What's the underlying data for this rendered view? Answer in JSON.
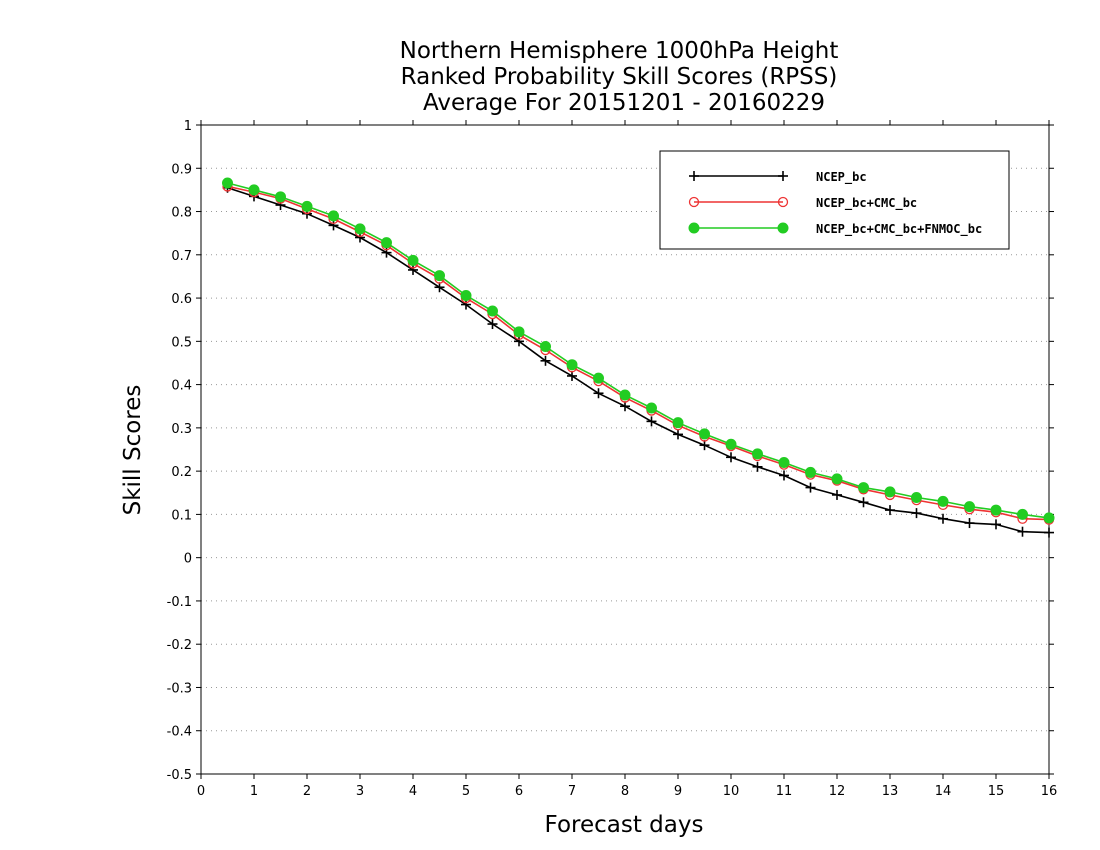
{
  "chart_data": {
    "type": "line",
    "title_lines": [
      "Northern Hemisphere 1000hPa Height",
      "Ranked Probability Skill Scores (RPSS)",
      "Average For 20151201 - 20160229"
    ],
    "xlabel": "Forecast days",
    "ylabel": "Skill Scores",
    "xlim": [
      0,
      16
    ],
    "ylim": [
      -0.5,
      1
    ],
    "x_ticks": [
      0,
      1,
      2,
      3,
      4,
      5,
      6,
      7,
      8,
      9,
      10,
      11,
      12,
      13,
      14,
      15,
      16
    ],
    "y_ticks": [
      -0.5,
      -0.4,
      -0.3,
      -0.2,
      -0.1,
      0,
      0.1,
      0.2,
      0.3,
      0.4,
      0.5,
      0.6,
      0.7,
      0.8,
      0.9,
      1
    ],
    "y_tick_labels": [
      "-0.5",
      "-0.4",
      "-0.3",
      "-0.2",
      "-0.1",
      "0",
      "0.1",
      "0.2",
      "0.3",
      "0.4",
      "0.5",
      "0.6",
      "0.7",
      "0.8",
      "0.9",
      "1"
    ],
    "grid": "horizontal dotted",
    "legend_position": "top-right",
    "x": [
      0.5,
      1,
      1.5,
      2,
      2.5,
      3,
      3.5,
      4,
      4.5,
      5,
      5.5,
      6,
      6.5,
      7,
      7.5,
      8,
      8.5,
      9,
      9.5,
      10,
      10.5,
      11,
      11.5,
      12,
      12.5,
      13,
      13.5,
      14,
      14.5,
      15,
      15.5,
      16
    ],
    "series": [
      {
        "name": "NCEP_bc",
        "color": "#000000",
        "marker": "plus",
        "values": [
          0.855,
          0.835,
          0.815,
          0.795,
          0.768,
          0.74,
          0.705,
          0.665,
          0.625,
          0.585,
          0.54,
          0.5,
          0.455,
          0.42,
          0.38,
          0.35,
          0.315,
          0.285,
          0.26,
          0.232,
          0.21,
          0.19,
          0.162,
          0.145,
          0.128,
          0.11,
          0.103,
          0.09,
          0.08,
          0.077,
          0.06,
          0.058
        ]
      },
      {
        "name": "NCEP_bc+CMC_bc",
        "color": "#ee3333",
        "marker": "open-circle",
        "values": [
          0.858,
          0.845,
          0.83,
          0.806,
          0.783,
          0.753,
          0.722,
          0.68,
          0.645,
          0.6,
          0.563,
          0.515,
          0.48,
          0.44,
          0.408,
          0.37,
          0.34,
          0.306,
          0.28,
          0.258,
          0.235,
          0.215,
          0.192,
          0.178,
          0.158,
          0.145,
          0.133,
          0.122,
          0.112,
          0.105,
          0.09,
          0.088
        ]
      },
      {
        "name": "NCEP_bc+CMC_bc+FNMOC_bc",
        "color": "#22cc22",
        "marker": "filled-circle",
        "values": [
          0.866,
          0.85,
          0.834,
          0.812,
          0.79,
          0.76,
          0.728,
          0.687,
          0.652,
          0.606,
          0.57,
          0.522,
          0.488,
          0.446,
          0.415,
          0.376,
          0.346,
          0.312,
          0.286,
          0.262,
          0.24,
          0.22,
          0.197,
          0.182,
          0.162,
          0.152,
          0.139,
          0.13,
          0.118,
          0.11,
          0.1,
          0.092
        ]
      }
    ]
  }
}
